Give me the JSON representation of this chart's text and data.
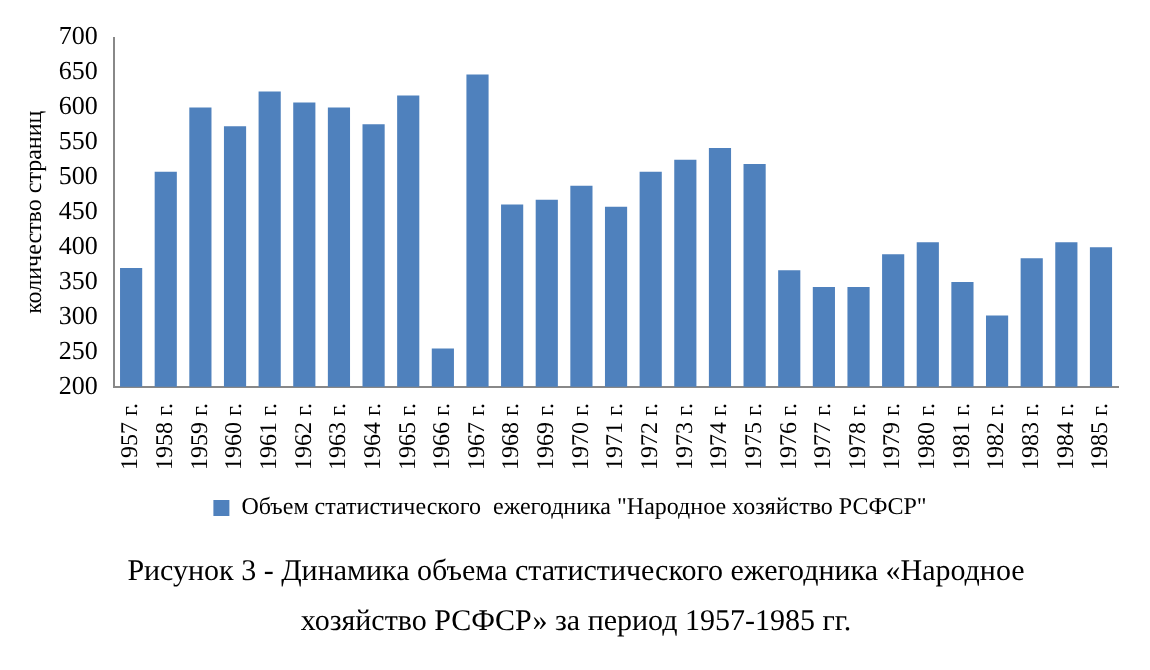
{
  "chart_data": {
    "type": "bar",
    "title": "Рисунок 3 - Динамика объема статистического ежегодника «Народное хозяйство РСФСР» за период 1957-1985 гг.",
    "ylabel": "количество страниц",
    "categories": [
      "1957 г.",
      "1958 г.",
      "1959 г.",
      "1960 г.",
      "1961 г.",
      "1962 г.",
      "1963 г.",
      "1964 г.",
      "1965 г.",
      "1966 г.",
      "1967 г.",
      "1968 г.",
      "1969 г.",
      "1970 г.",
      "1971 г.",
      "1972 г.",
      "1973 г.",
      "1974 г.",
      "1975 г.",
      "1976 г.",
      "1977 г.",
      "1978 г.",
      "1979 г.",
      "1980 г.",
      "1981 г.",
      "1982 г.",
      "1983 г.",
      "1984 г.",
      "1985 г."
    ],
    "series": [
      {
        "name": "Объем статистического  ежегодника \"Народное хозяйство РСФСР\"",
        "color": "#4f81bd",
        "values": [
          370,
          508,
          600,
          573,
          623,
          607,
          600,
          576,
          617,
          255,
          647,
          461,
          468,
          488,
          458,
          508,
          525,
          542,
          519,
          367,
          343,
          343,
          390,
          407,
          350,
          302,
          384,
          407,
          400
        ]
      }
    ],
    "ylim": [
      200,
      700
    ],
    "yticks": [
      200,
      250,
      300,
      350,
      400,
      450,
      500,
      550,
      600,
      650,
      700
    ],
    "grid": false,
    "legend": "bottom"
  }
}
